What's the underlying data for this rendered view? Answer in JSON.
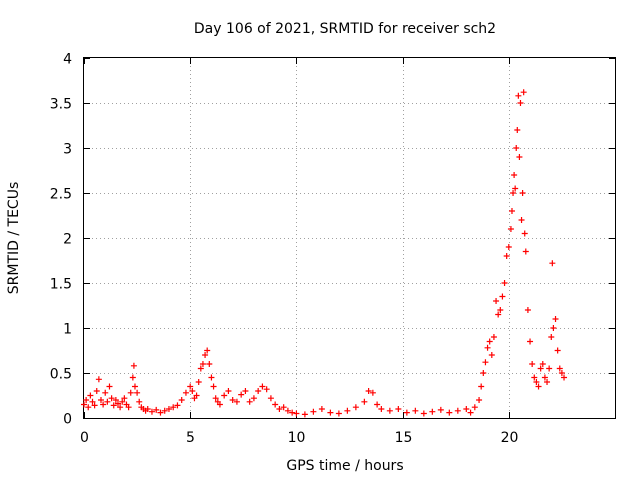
{
  "chart_data": {
    "type": "scatter",
    "title": "Day 106 of 2021, SRMTID for receiver sch2",
    "xlabel": "GPS time / hours",
    "ylabel": "SRMTID / TECUs",
    "xlim": [
      0,
      25
    ],
    "ylim": [
      0,
      4
    ],
    "x_ticks": [
      0,
      5,
      10,
      15,
      20
    ],
    "x_tick_labels": [
      "0",
      "5",
      "10",
      "15",
      "20"
    ],
    "y_ticks": [
      0,
      0.5,
      1,
      1.5,
      2,
      2.5,
      3,
      3.5,
      4
    ],
    "y_tick_labels": [
      "0",
      "0.5",
      "1",
      "1.5",
      "2",
      "2.5",
      "3",
      "3.5",
      "4"
    ],
    "grid": true,
    "marker": "+",
    "marker_color": "#ff0000",
    "series": [
      {
        "name": "sch2",
        "envelope_note": "dense point cloud; points below are representative samples read off the figure",
        "x": [
          0.0,
          0.1,
          0.2,
          0.3,
          0.4,
          0.5,
          0.6,
          0.7,
          0.8,
          0.9,
          1.0,
          1.1,
          1.2,
          1.3,
          1.4,
          1.5,
          1.6,
          1.7,
          1.8,
          1.9,
          2.0,
          2.1,
          2.2,
          2.3,
          2.35,
          2.4,
          2.5,
          2.6,
          2.7,
          2.8,
          2.9,
          3.0,
          3.2,
          3.4,
          3.6,
          3.8,
          4.0,
          4.2,
          4.4,
          4.6,
          4.8,
          5.0,
          5.1,
          5.2,
          5.3,
          5.4,
          5.5,
          5.6,
          5.7,
          5.8,
          5.9,
          6.0,
          6.1,
          6.2,
          6.3,
          6.4,
          6.6,
          6.8,
          7.0,
          7.2,
          7.4,
          7.6,
          7.8,
          8.0,
          8.2,
          8.4,
          8.6,
          8.8,
          9.0,
          9.2,
          9.4,
          9.6,
          9.8,
          10.0,
          10.4,
          10.8,
          11.2,
          11.6,
          12.0,
          12.4,
          12.8,
          13.2,
          13.4,
          13.6,
          13.8,
          14.0,
          14.4,
          14.8,
          15.2,
          15.6,
          16.0,
          16.4,
          16.8,
          17.2,
          17.6,
          18.0,
          18.2,
          18.4,
          18.6,
          18.7,
          18.8,
          18.9,
          19.0,
          19.1,
          19.2,
          19.3,
          19.4,
          19.5,
          19.6,
          19.7,
          19.8,
          19.9,
          20.0,
          20.1,
          20.15,
          20.2,
          20.25,
          20.3,
          20.35,
          20.4,
          20.45,
          20.5,
          20.55,
          20.6,
          20.65,
          20.7,
          20.75,
          20.8,
          20.9,
          21.0,
          21.1,
          21.2,
          21.3,
          21.4,
          21.5,
          21.6,
          21.7,
          21.8,
          21.9,
          22.0,
          22.05,
          22.1,
          22.2,
          22.3,
          22.4,
          22.5,
          22.6
        ],
        "y": [
          0.15,
          0.2,
          0.12,
          0.25,
          0.18,
          0.14,
          0.3,
          0.43,
          0.2,
          0.15,
          0.28,
          0.18,
          0.35,
          0.22,
          0.14,
          0.2,
          0.16,
          0.12,
          0.18,
          0.22,
          0.15,
          0.12,
          0.28,
          0.45,
          0.58,
          0.35,
          0.28,
          0.18,
          0.12,
          0.1,
          0.08,
          0.1,
          0.07,
          0.09,
          0.06,
          0.08,
          0.1,
          0.12,
          0.14,
          0.2,
          0.28,
          0.35,
          0.3,
          0.22,
          0.25,
          0.4,
          0.55,
          0.6,
          0.7,
          0.75,
          0.6,
          0.45,
          0.35,
          0.22,
          0.18,
          0.15,
          0.25,
          0.3,
          0.2,
          0.18,
          0.26,
          0.3,
          0.18,
          0.22,
          0.3,
          0.35,
          0.32,
          0.22,
          0.15,
          0.1,
          0.12,
          0.08,
          0.06,
          0.05,
          0.04,
          0.07,
          0.1,
          0.06,
          0.05,
          0.08,
          0.12,
          0.18,
          0.3,
          0.28,
          0.15,
          0.1,
          0.08,
          0.1,
          0.06,
          0.08,
          0.05,
          0.07,
          0.09,
          0.06,
          0.08,
          0.1,
          0.06,
          0.12,
          0.2,
          0.35,
          0.5,
          0.62,
          0.78,
          0.85,
          0.7,
          0.9,
          1.3,
          1.15,
          1.2,
          1.35,
          1.5,
          1.8,
          1.9,
          2.1,
          2.3,
          2.5,
          2.7,
          2.55,
          3.0,
          3.2,
          3.58,
          2.9,
          3.5,
          2.2,
          2.5,
          3.62,
          2.05,
          1.85,
          1.2,
          0.85,
          0.6,
          0.45,
          0.4,
          0.35,
          0.55,
          0.6,
          0.45,
          0.4,
          0.55,
          0.9,
          1.72,
          1.0,
          1.1,
          0.75,
          0.55,
          0.5,
          0.45
        ]
      }
    ]
  }
}
